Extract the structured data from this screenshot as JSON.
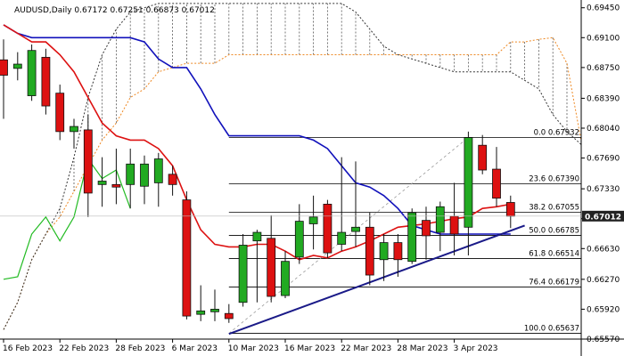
{
  "chart_data": {
    "type": "candlestick",
    "symbol": "AUDUSD,Daily",
    "ohlc_header": "0.67172 0.67251 0.66873 0.67012",
    "ylim": [
      0.6557,
      0.6952
    ],
    "y_ticks": [
      "0.69450",
      "0.69100",
      "0.68750",
      "0.68390",
      "0.68040",
      "0.67690",
      "0.67330",
      "0.66980",
      "0.66630",
      "0.66270",
      "0.65920",
      "0.65570"
    ],
    "y_tick_values": [
      0.6945,
      0.691,
      0.6875,
      0.6839,
      0.6804,
      0.6769,
      0.6733,
      0.6698,
      0.6663,
      0.6627,
      0.6592,
      0.6557
    ],
    "x_ticks": [
      {
        "label": "16 Feb 2023",
        "bar": 0
      },
      {
        "label": "22 Feb 2023",
        "bar": 4
      },
      {
        "label": "28 Feb 2023",
        "bar": 8
      },
      {
        "label": "6 Mar 2023",
        "bar": 12
      },
      {
        "label": "10 Mar 2023",
        "bar": 16
      },
      {
        "label": "16 Mar 2023",
        "bar": 20
      },
      {
        "label": "22 Mar 2023",
        "bar": 24
      },
      {
        "label": "28 Mar 2023",
        "bar": 28
      },
      {
        "label": "3 Apr 2023",
        "bar": 32
      }
    ],
    "current_price": "0.67012",
    "colors": {
      "up": "#22aa22",
      "down": "#dd1111",
      "tenkan": "#dd1111",
      "kijun": "#1111bb",
      "chikou": "#22bb22",
      "span_a": "#ee8822",
      "span_b": "#333333",
      "trendline": "#1a1a88",
      "price_tag": "#222222"
    },
    "candles": [
      {
        "o": 0.6884,
        "h": 0.6908,
        "l": 0.6815,
        "c": 0.6866
      },
      {
        "o": 0.6874,
        "h": 0.6893,
        "l": 0.686,
        "c": 0.6879
      },
      {
        "o": 0.6842,
        "h": 0.6902,
        "l": 0.6836,
        "c": 0.6895
      },
      {
        "o": 0.6887,
        "h": 0.6897,
        "l": 0.682,
        "c": 0.683
      },
      {
        "o": 0.6845,
        "h": 0.6855,
        "l": 0.679,
        "c": 0.68
      },
      {
        "o": 0.68,
        "h": 0.6815,
        "l": 0.678,
        "c": 0.6806
      },
      {
        "o": 0.6802,
        "h": 0.682,
        "l": 0.67,
        "c": 0.6728
      },
      {
        "o": 0.6738,
        "h": 0.677,
        "l": 0.6712,
        "c": 0.6742
      },
      {
        "o": 0.6738,
        "h": 0.678,
        "l": 0.6715,
        "c": 0.6735
      },
      {
        "o": 0.6738,
        "h": 0.678,
        "l": 0.671,
        "c": 0.6762
      },
      {
        "o": 0.6736,
        "h": 0.6772,
        "l": 0.6715,
        "c": 0.6762
      },
      {
        "o": 0.674,
        "h": 0.6775,
        "l": 0.6712,
        "c": 0.6768
      },
      {
        "o": 0.675,
        "h": 0.676,
        "l": 0.6725,
        "c": 0.6738
      },
      {
        "o": 0.672,
        "h": 0.673,
        "l": 0.658,
        "c": 0.6584
      },
      {
        "o": 0.6586,
        "h": 0.662,
        "l": 0.6578,
        "c": 0.659
      },
      {
        "o": 0.6589,
        "h": 0.6615,
        "l": 0.6578,
        "c": 0.6592
      },
      {
        "o": 0.6587,
        "h": 0.6598,
        "l": 0.6576,
        "c": 0.6581
      },
      {
        "o": 0.66,
        "h": 0.668,
        "l": 0.6595,
        "c": 0.6667
      },
      {
        "o": 0.6672,
        "h": 0.6685,
        "l": 0.66,
        "c": 0.6682
      },
      {
        "o": 0.6675,
        "h": 0.6702,
        "l": 0.66,
        "c": 0.6607
      },
      {
        "o": 0.6608,
        "h": 0.666,
        "l": 0.6605,
        "c": 0.6648
      },
      {
        "o": 0.6653,
        "h": 0.6715,
        "l": 0.6645,
        "c": 0.6695
      },
      {
        "o": 0.6692,
        "h": 0.6725,
        "l": 0.6662,
        "c": 0.67
      },
      {
        "o": 0.6715,
        "h": 0.672,
        "l": 0.6652,
        "c": 0.6658
      },
      {
        "o": 0.6668,
        "h": 0.677,
        "l": 0.666,
        "c": 0.6682
      },
      {
        "o": 0.6683,
        "h": 0.6765,
        "l": 0.6665,
        "c": 0.6688
      },
      {
        "o": 0.6688,
        "h": 0.6705,
        "l": 0.662,
        "c": 0.6632
      },
      {
        "o": 0.665,
        "h": 0.668,
        "l": 0.6625,
        "c": 0.667
      },
      {
        "o": 0.667,
        "h": 0.668,
        "l": 0.663,
        "c": 0.665
      },
      {
        "o": 0.6648,
        "h": 0.671,
        "l": 0.6645,
        "c": 0.6705
      },
      {
        "o": 0.6696,
        "h": 0.6712,
        "l": 0.665,
        "c": 0.6678
      },
      {
        "o": 0.6682,
        "h": 0.6718,
        "l": 0.666,
        "c": 0.6712
      },
      {
        "o": 0.6701,
        "h": 0.674,
        "l": 0.6655,
        "c": 0.668
      },
      {
        "o": 0.6688,
        "h": 0.68,
        "l": 0.6655,
        "c": 0.6793
      },
      {
        "o": 0.6784,
        "h": 0.6796,
        "l": 0.675,
        "c": 0.6755
      },
      {
        "o": 0.6756,
        "h": 0.6782,
        "l": 0.6712,
        "c": 0.6722
      },
      {
        "o": 0.6717,
        "h": 0.6725,
        "l": 0.6687,
        "c": 0.6701
      }
    ],
    "tenkan_sen": [
      0.6925,
      0.6915,
      0.6905,
      0.6905,
      0.689,
      0.687,
      0.684,
      0.681,
      0.6795,
      0.679,
      0.679,
      0.678,
      0.676,
      0.672,
      0.6685,
      0.6668,
      0.6665,
      0.6665,
      0.6668,
      0.6668,
      0.666,
      0.665,
      0.6655,
      0.6652,
      0.666,
      0.6665,
      0.6672,
      0.668,
      0.6688,
      0.669,
      0.6692,
      0.6695,
      0.6698,
      0.67,
      0.671,
      0.6712,
      0.6715
    ],
    "kijun_sen": [
      0.6925,
      0.6915,
      0.691,
      0.691,
      0.691,
      0.691,
      0.691,
      0.691,
      0.691,
      0.691,
      0.6905,
      0.6885,
      0.6875,
      0.6875,
      0.685,
      0.682,
      0.6795,
      0.6795,
      0.6795,
      0.6795,
      0.6795,
      0.6795,
      0.679,
      0.678,
      0.676,
      0.674,
      0.6735,
      0.6725,
      0.671,
      0.669,
      0.6685,
      0.668,
      0.668,
      0.668,
      0.668,
      0.668,
      0.668
    ],
    "chikou_span": [
      {
        "bar": 0,
        "v": 0.6627
      },
      {
        "bar": 1,
        "v": 0.663
      },
      {
        "bar": 2,
        "v": 0.668
      },
      {
        "bar": 3,
        "v": 0.67
      },
      {
        "bar": 4,
        "v": 0.6672
      },
      {
        "bar": 5,
        "v": 0.67
      },
      {
        "bar": 6,
        "v": 0.6768
      },
      {
        "bar": 7,
        "v": 0.6745
      },
      {
        "bar": 8,
        "v": 0.6755
      },
      {
        "bar": 9,
        "v": 0.671
      }
    ],
    "senkou_span_a": [
      0.6568,
      0.66,
      0.665,
      0.668,
      0.67,
      0.673,
      0.676,
      0.679,
      0.681,
      0.684,
      0.685,
      0.687,
      0.6875,
      0.688,
      0.688,
      0.688,
      0.689,
      0.689,
      0.689,
      0.689,
      0.689,
      0.689,
      0.689,
      0.689,
      0.689,
      0.689,
      0.689,
      0.689,
      0.689,
      0.689,
      0.689,
      0.689,
      0.689,
      0.689,
      0.689,
      0.689,
      0.6905,
      0.6905,
      0.6908,
      0.691,
      0.688,
      0.679
    ],
    "senkou_span_b": [
      0.6568,
      0.66,
      0.665,
      0.668,
      0.671,
      0.677,
      0.684,
      0.689,
      0.692,
      0.694,
      0.6945,
      0.695,
      0.695,
      0.695,
      0.695,
      0.695,
      0.695,
      0.695,
      0.695,
      0.695,
      0.695,
      0.695,
      0.695,
      0.695,
      0.695,
      0.694,
      0.692,
      0.69,
      0.689,
      0.6885,
      0.688,
      0.6875,
      0.687,
      0.687,
      0.687,
      0.687,
      0.687,
      0.686,
      0.685,
      0.682,
      0.68,
      0.6785
    ],
    "trendline": {
      "from": {
        "bar": 16,
        "v": 0.6563
      },
      "to": {
        "bar": 37,
        "v": 0.669
      }
    },
    "fib_start_bar": 16,
    "fib_end_bar": 37,
    "fib_levels": [
      {
        "label": "0.0 0.67932",
        "v": 0.67932
      },
      {
        "label": "23.6 0.67390",
        "v": 0.6739
      },
      {
        "label": "38.2 0.67055",
        "v": 0.67055
      },
      {
        "label": "50.0 0.66785",
        "v": 0.66785
      },
      {
        "label": "61.8 0.66514",
        "v": 0.66514
      },
      {
        "label": "76.4 0.66179",
        "v": 0.66179
      },
      {
        "label": "100.0 0.65637",
        "v": 0.65637
      }
    ]
  }
}
